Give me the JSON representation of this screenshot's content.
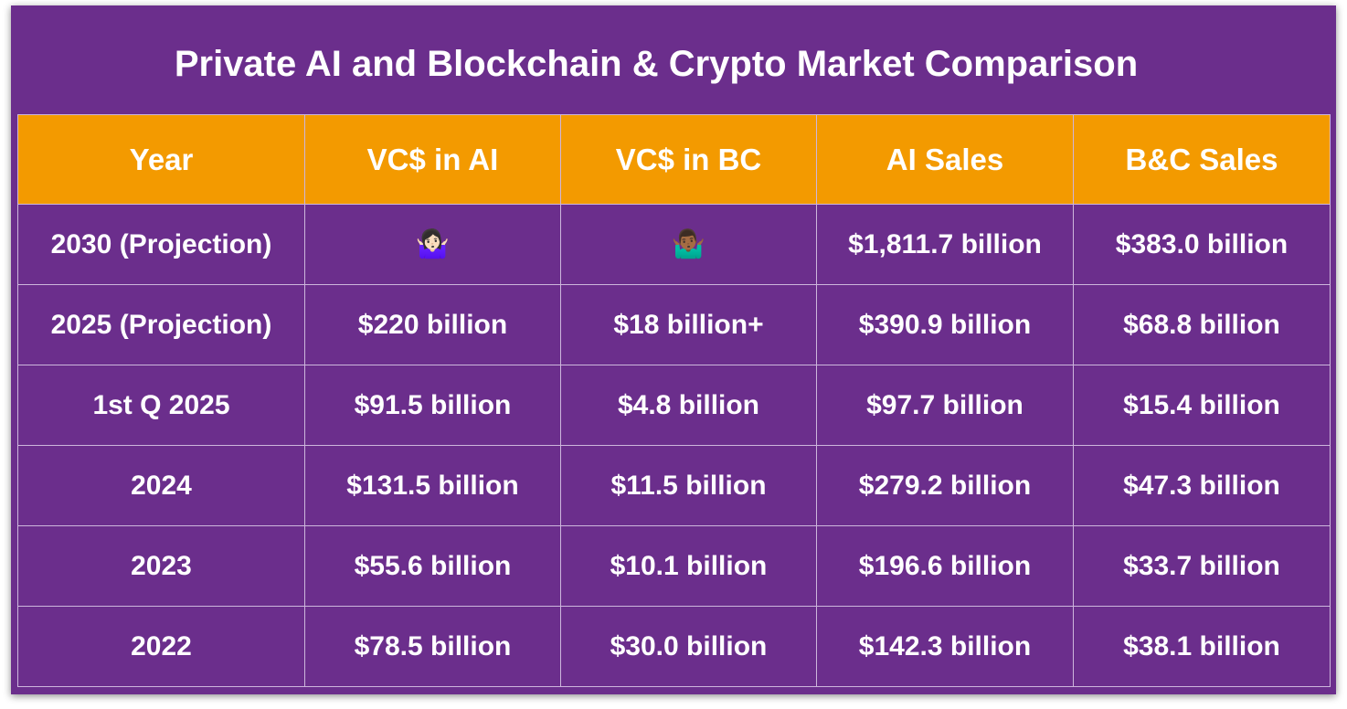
{
  "title": "Private AI and Blockchain & Crypto Market Comparison",
  "table": {
    "header": [
      "Year",
      "VC$ in AI",
      "VC$ in BC",
      "AI Sales",
      "B&C Sales"
    ],
    "rows": [
      [
        "2030 (Projection)",
        "🤷🏻‍♀️",
        "🤷🏾‍♂️",
        "$1,811.7 billion",
        "$383.0 billion"
      ],
      [
        "2025 (Projection)",
        "$220 billion",
        "$18 billion+",
        "$390.9 billion",
        "$68.8 billion"
      ],
      [
        "1st Q 2025",
        "$91.5 billion",
        "$4.8 billion",
        "$97.7 billion",
        "$15.4 billion"
      ],
      [
        "2024",
        "$131.5 billion",
        "$11.5 billion",
        "$279.2 billion",
        "$47.3 billion"
      ],
      [
        "2023",
        "$55.6 billion",
        "$10.1 billion",
        "$196.6 billion",
        "$33.7 billion"
      ],
      [
        "2022",
        "$78.5 billion",
        "$30.0 billion",
        "$142.3 billion",
        "$38.1 billion"
      ]
    ]
  }
}
